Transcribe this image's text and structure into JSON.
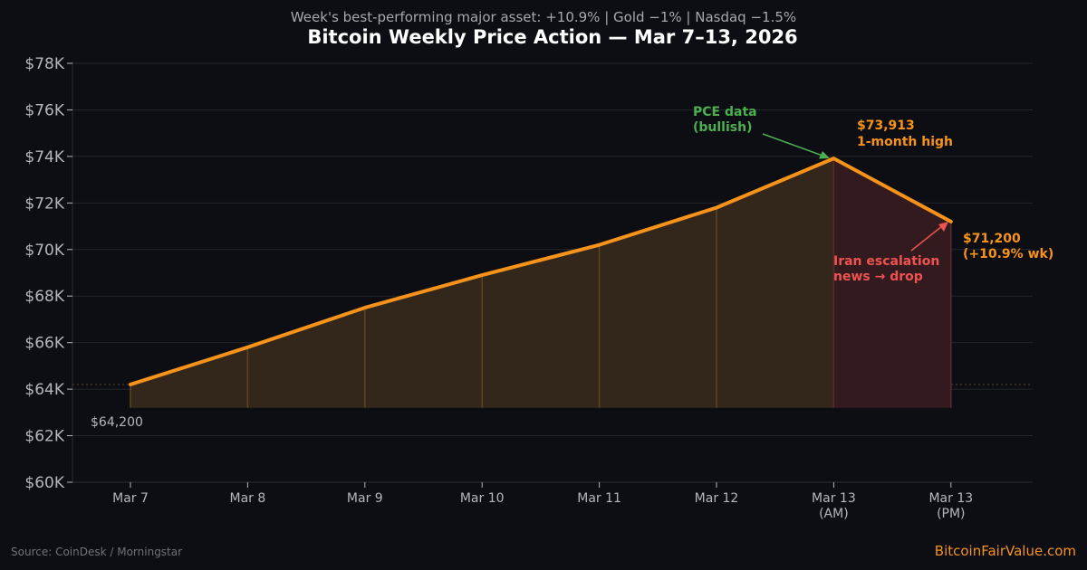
{
  "chart_data": {
    "type": "area",
    "title": "Bitcoin Weekly Price Action — Mar 7–13, 2026",
    "subtitle": "Week's best-performing major asset: +10.9% | Gold −1% | Nasdaq −1.5%",
    "categories": [
      [
        "Mar 7"
      ],
      [
        "Mar 8"
      ],
      [
        "Mar 9"
      ],
      [
        "Mar 10"
      ],
      [
        "Mar 11"
      ],
      [
        "Mar 12"
      ],
      [
        "Mar 13",
        "(AM)"
      ],
      [
        "Mar 13",
        "(PM)"
      ]
    ],
    "values": [
      64200,
      65800,
      67500,
      68900,
      70200,
      71800,
      73913,
      71200
    ],
    "ylim": [
      60000,
      78000
    ],
    "yticks": [
      60000,
      62000,
      64000,
      66000,
      68000,
      70000,
      72000,
      74000,
      76000,
      78000
    ],
    "ytick_labels": [
      "$60K",
      "$62K",
      "$64K",
      "$66K",
      "$68K",
      "$70K",
      "$72K",
      "$74K",
      "$76K",
      "$78K"
    ],
    "area_base": 63200,
    "reference_line": 64200,
    "grid": true,
    "annotations": {
      "start_label": "$64,200",
      "pce": [
        "PCE data",
        "(bullish)"
      ],
      "high": [
        "$73,913",
        "1-month high"
      ],
      "iran": [
        "Iran escalation",
        "news → drop"
      ],
      "end": [
        "$71,200",
        "(+10.9% wk)"
      ]
    }
  },
  "footer": {
    "source": "Source: CoinDesk / Morningstar",
    "brand": "BitcoinFairValue.com"
  },
  "colors": {
    "background": "#0c0e13",
    "line": "#f7931a",
    "fill": "#33261a",
    "drop_fill": "#331a1f",
    "grid": "#23262b",
    "pce_green": "#4caf50",
    "iran_red": "#ef5350"
  }
}
